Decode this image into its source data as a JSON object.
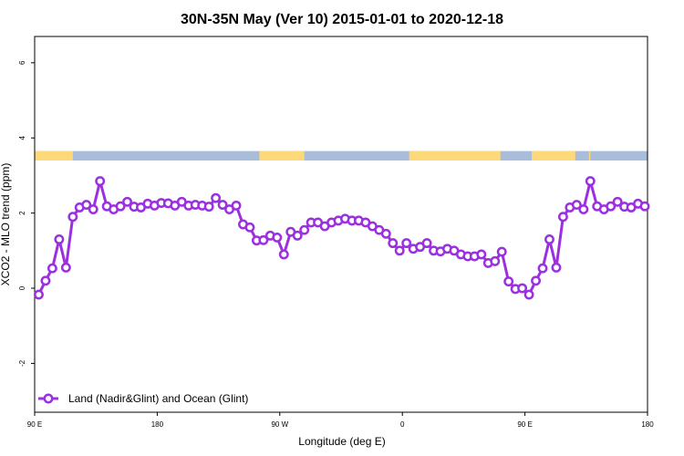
{
  "chart_data": {
    "type": "line",
    "title": "30N-35N May (Ver 10)   2015-01-01 to 2020-12-18",
    "xlabel": "Longitude (deg E)",
    "ylabel": "XCO2 - MLO trend (ppm)",
    "xlim": [
      90,
      540
    ],
    "ylim": [
      -3.3,
      6.7
    ],
    "x_ticks": [
      {
        "value": 90,
        "label": "90 E"
      },
      {
        "value": 180,
        "label": "180"
      },
      {
        "value": 270,
        "label": "90 W"
      },
      {
        "value": 360,
        "label": "0"
      },
      {
        "value": 450,
        "label": "90 E"
      },
      {
        "value": 540,
        "label": "180"
      }
    ],
    "y_ticks": [
      {
        "value": -2,
        "label": "-2"
      },
      {
        "value": 0,
        "label": "0"
      },
      {
        "value": 2,
        "label": "2"
      },
      {
        "value": 4,
        "label": "4"
      },
      {
        "value": 6,
        "label": "6"
      }
    ],
    "series": [
      {
        "name": "Land (Nadir&Glint) and Ocean (Glint)",
        "color": "#9b30e0",
        "x": [
          93,
          98,
          103,
          108,
          113,
          118,
          123,
          128,
          133,
          138,
          143,
          148,
          153,
          158,
          163,
          168,
          173,
          178,
          183,
          188,
          193,
          198,
          203,
          208,
          213,
          218,
          223,
          228,
          233,
          238,
          243,
          248,
          253,
          258,
          263,
          268,
          273,
          278,
          283,
          288,
          293,
          298,
          303,
          308,
          313,
          318,
          323,
          328,
          333,
          338,
          343,
          348,
          353,
          358,
          363,
          368,
          373,
          378,
          383,
          388,
          393,
          398,
          403,
          408,
          413,
          418,
          423,
          428,
          433,
          438,
          443,
          448,
          453,
          458,
          463,
          468,
          473,
          478,
          483,
          488,
          493,
          498,
          503,
          508,
          513,
          518,
          523,
          528,
          533,
          538
        ],
        "values": [
          -0.17,
          0.2,
          0.53,
          1.3,
          0.55,
          1.9,
          2.15,
          2.22,
          2.1,
          2.85,
          2.18,
          2.1,
          2.18,
          2.3,
          2.17,
          2.15,
          2.25,
          2.2,
          2.27,
          2.26,
          2.2,
          2.3,
          2.2,
          2.22,
          2.2,
          2.17,
          2.4,
          2.22,
          2.1,
          2.2,
          1.7,
          1.62,
          1.27,
          1.28,
          1.4,
          1.35,
          0.9,
          1.5,
          1.4,
          1.55,
          1.75,
          1.75,
          1.65,
          1.75,
          1.8,
          1.85,
          1.8,
          1.8,
          1.75,
          1.65,
          1.55,
          1.45,
          1.2,
          1.0,
          1.2,
          1.05,
          1.1,
          1.2,
          1.0,
          0.98,
          1.05,
          1.0,
          0.9,
          0.85,
          0.85,
          0.9,
          0.67,
          0.72,
          0.97,
          0.18,
          -0.02,
          0.0,
          -0.17,
          0.2,
          0.53,
          1.3,
          0.55,
          1.9,
          2.15,
          2.22,
          2.1,
          2.85,
          2.18,
          2.1,
          2.18,
          2.3,
          2.17,
          2.15,
          2.25,
          2.18
        ]
      }
    ],
    "land_ocean_band": {
      "y_range": [
        3.4,
        3.65
      ],
      "land_color": "#fdd97a",
      "ocean_color": "#a9bcd9",
      "land_segments": [
        [
          90,
          118
        ],
        [
          255,
          288
        ],
        [
          365,
          432
        ],
        [
          455,
          487
        ],
        [
          497,
          498
        ]
      ]
    },
    "legend_position": "bottom-left",
    "grid": false
  }
}
